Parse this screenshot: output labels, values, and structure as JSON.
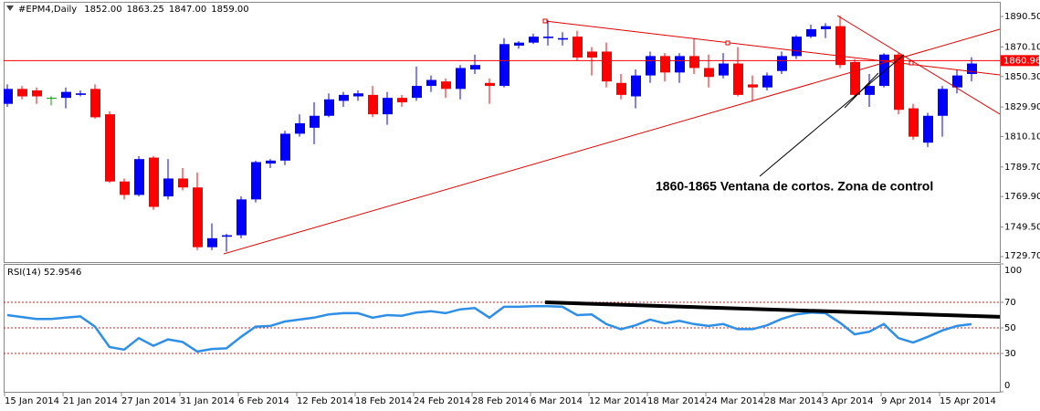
{
  "chart_data": [
    {
      "type": "candlestick",
      "title": "#EPM4,Daily",
      "header_values": [
        "1852.00",
        "1863.25",
        "1847.00",
        "1859.00"
      ],
      "categories": [
        "15 Jan 2014",
        null,
        null,
        null,
        "21 Jan 2014",
        null,
        null,
        null,
        "27 Jan 2014",
        null,
        null,
        null,
        "31 Jan 2014",
        null,
        null,
        null,
        "6 Feb 2014",
        null,
        null,
        null,
        "12 Feb 2014",
        null,
        null,
        null,
        "18 Feb 2014",
        null,
        null,
        null,
        "24 Feb 2014",
        null,
        null,
        null,
        "28 Feb 2014",
        null,
        null,
        null,
        "6 Mar 2014",
        null,
        null,
        null,
        "12 Mar 2014",
        null,
        null,
        null,
        "18 Mar 2014",
        null,
        null,
        null,
        "24 Mar 2014",
        null,
        null,
        null,
        "28 Mar 2014",
        null,
        null,
        null,
        "3 Apr 2014",
        null,
        null,
        null,
        "9 Apr 2014",
        null,
        null,
        null,
        "15 Apr 2014",
        null,
        null
      ],
      "open": [
        1832,
        1842,
        1841,
        1836,
        1836,
        1838,
        1842,
        1825,
        1780,
        1771,
        1796,
        1770,
        1782,
        1776,
        1736,
        1743,
        1744,
        1768,
        1792,
        1794,
        1812,
        1816,
        1824,
        1834,
        1837,
        1838,
        1825,
        1836,
        1836,
        1844,
        1847,
        1842,
        1855,
        1846,
        1844,
        1871,
        1873,
        1876,
        1875,
        1877,
        1867,
        1867,
        1846,
        1837,
        1851,
        1864,
        1853,
        1864,
        1856,
        1851,
        1859,
        1845,
        1843,
        1854,
        1864,
        1877,
        1882,
        1884,
        1860,
        1838,
        1844,
        1865,
        1829,
        1806,
        1824,
        1843,
        1852
      ],
      "high": [
        1845,
        1844,
        1843,
        1837,
        1843,
        1841,
        1845,
        1827,
        1782,
        1797,
        1797,
        1795,
        1789,
        1786,
        1752,
        1745,
        1770,
        1794,
        1795,
        1814,
        1825,
        1833,
        1839,
        1840,
        1841,
        1844,
        1840,
        1838,
        1857,
        1851,
        1849,
        1858,
        1865,
        1849,
        1876,
        1874,
        1879,
        1888,
        1880,
        1881,
        1870,
        1873,
        1852,
        1855,
        1867,
        1866,
        1866,
        1876,
        1865,
        1866,
        1870,
        1851,
        1853,
        1867,
        1878,
        1885,
        1886,
        1891,
        1862,
        1852,
        1866,
        1866,
        1832,
        1826,
        1844,
        1855,
        1863.25
      ],
      "low": [
        1830,
        1835,
        1832,
        1831,
        1829,
        1837,
        1822,
        1779,
        1768,
        1770,
        1761,
        1768,
        1774,
        1734,
        1734,
        1733,
        1742,
        1766,
        1789,
        1791,
        1810,
        1805,
        1823,
        1830,
        1834,
        1823,
        1818,
        1830,
        1834,
        1840,
        1836,
        1835,
        1852,
        1832,
        1843,
        1869,
        1872,
        1871,
        1871,
        1861,
        1851,
        1843,
        1835,
        1829,
        1846,
        1847,
        1846,
        1852,
        1843,
        1849,
        1837,
        1834,
        1841,
        1852,
        1862,
        1876,
        1876,
        1856,
        1836,
        1830,
        1843,
        1825,
        1808,
        1803,
        1810,
        1839,
        1847
      ],
      "close": [
        1842,
        1837,
        1837,
        1836,
        1840,
        1839,
        1823,
        1780,
        1771,
        1795,
        1763,
        1782,
        1776,
        1736,
        1742,
        1744,
        1768,
        1793,
        1794,
        1812,
        1819,
        1824,
        1835,
        1838,
        1839,
        1825,
        1836,
        1833,
        1844,
        1848,
        1842,
        1856,
        1858,
        1844,
        1872,
        1873,
        1877,
        1877,
        1876,
        1863,
        1863,
        1847,
        1838,
        1851,
        1864,
        1853,
        1864,
        1856,
        1850,
        1859,
        1838,
        1843,
        1851,
        1864,
        1877,
        1882,
        1884,
        1858,
        1838,
        1844,
        1865,
        1828,
        1810,
        1824,
        1842,
        1851,
        1859
      ],
      "up_color": "#0000ff",
      "down_color": "#ff0000",
      "doji_color": "#00a000",
      "ylim": [
        1726,
        1899.7
      ],
      "yticks": [
        {
          "value": 1890.5,
          "label": "1890.50"
        },
        {
          "value": 1870.1,
          "label": "1870.10"
        },
        {
          "value": 1850.3,
          "label": "1850.30"
        },
        {
          "value": 1829.9,
          "label": "1829.90"
        },
        {
          "value": 1810.1,
          "label": "1810.10"
        },
        {
          "value": 1789.7,
          "label": "1789.70"
        },
        {
          "value": 1769.9,
          "label": "1769.90"
        },
        {
          "value": 1749.5,
          "label": "1749.50"
        },
        {
          "value": 1729.7,
          "label": "1729.70"
        }
      ],
      "hline": 1860.96,
      "hline_color": "#ff0000",
      "annotation": "1860-1865 Ventana de cortos. Zona de control"
    },
    {
      "type": "line",
      "title": "RSI(14) 52.9546",
      "color": "#2f8fe6",
      "values": [
        60,
        58.5,
        57,
        57,
        58,
        59,
        51,
        35,
        33,
        42,
        36,
        41,
        39,
        31.5,
        33.5,
        34,
        43,
        51,
        51.5,
        55,
        56.5,
        58,
        60.5,
        61.5,
        61.5,
        58,
        60,
        59.5,
        62,
        63,
        61.5,
        64.5,
        65.5,
        58,
        66.5,
        66.5,
        67,
        67,
        66.5,
        60,
        60.5,
        53,
        49,
        52,
        56.5,
        53.5,
        55.5,
        53,
        51.5,
        53,
        49,
        49,
        52,
        57,
        60.5,
        62,
        61.5,
        54,
        45,
        47,
        53,
        42,
        38.5,
        43,
        48,
        51.5,
        52.9546
      ],
      "ylim": [
        0,
        100
      ],
      "yticks": [
        100,
        70,
        50,
        30,
        0
      ],
      "levels": [
        70,
        50,
        30
      ],
      "level_color": "#d02020"
    }
  ]
}
